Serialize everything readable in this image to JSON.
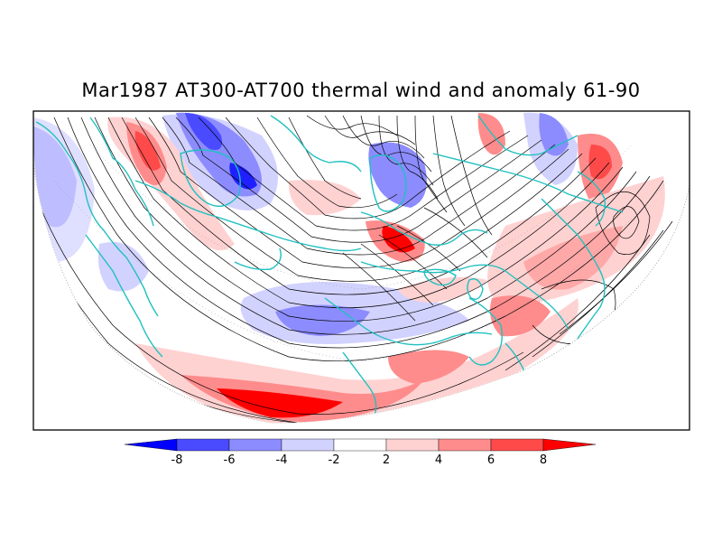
{
  "title": "Mar1987 AT300-AT700 thermal wind and anomaly 61-90",
  "colorbar": {
    "tick_labels": [
      "-8",
      "-6",
      "-4",
      "-2",
      "2",
      "4",
      "6",
      "8"
    ],
    "bins": [
      {
        "range": "< -8",
        "color": "#0000ff"
      },
      {
        "range": "-8 to -6",
        "color": "#4a4aff"
      },
      {
        "range": "-6 to -4",
        "color": "#8c8cff"
      },
      {
        "range": "-4 to -2",
        "color": "#d2d2ff"
      },
      {
        "range": "-2 to 2",
        "color": "#ffffff"
      },
      {
        "range": "2 to 4",
        "color": "#ffd2d2"
      },
      {
        "range": "4 to 6",
        "color": "#ff8c8c"
      },
      {
        "range": "6 to 8",
        "color": "#ff4a4a"
      },
      {
        "range": "> 8",
        "color": "#ff0000"
      }
    ]
  },
  "map": {
    "projection": "north polar stereographic (lower half view)",
    "coastline_color": "#20c0c0",
    "streamline_color": "#000000",
    "anomaly_levels": [
      -8,
      -6,
      -4,
      -2,
      2,
      4,
      6,
      8
    ]
  }
}
